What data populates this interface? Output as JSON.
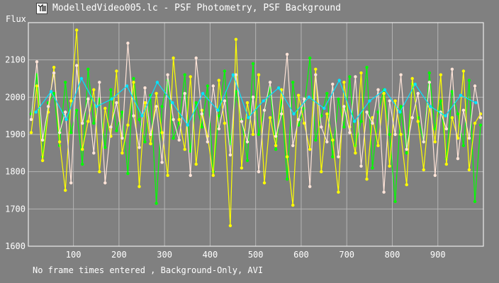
{
  "window": {
    "title": "ModelledVideo005.lc - PSF Photometry, PSF Background",
    "icon": "app-icon"
  },
  "footer": {
    "status": "No frame times entered , Background-Only, AVI"
  },
  "colors": {
    "background": "#808080",
    "grid": "#b4b4b4",
    "axis": "#ffffff",
    "series1": "#00ff00",
    "series2": "#ffff00",
    "series3": "#ffe4d8",
    "series4": "#00e5ff"
  },
  "chart_data": {
    "type": "line",
    "title": "",
    "xlabel": "",
    "ylabel": "Flux",
    "xlim": [
      1,
      1000
    ],
    "ylim": [
      1600,
      2200
    ],
    "grid": true,
    "x_ticks": [
      100,
      200,
      300,
      400,
      500,
      600,
      700,
      800,
      900
    ],
    "y_ticks": [
      1600,
      1700,
      1800,
      1900,
      2000,
      2100
    ],
    "series": [
      {
        "color": "#00ff00",
        "values": [
          1955,
          2060,
          1840,
          1985,
          2010,
          1870,
          2040,
          1905,
          1965,
          1820,
          2075,
          1930,
          1995,
          1865,
          2020,
          1910,
          1960,
          1795,
          2050,
          1940,
          1880,
          2005,
          1715,
          1975,
          2045,
          1890,
          1930,
          2060,
          1855,
          1985,
          1920,
          2030,
          1800,
          1950,
          2070,
          1875,
          2015,
          1940,
          1830,
          2090,
          1900,
          1965,
          2025,
          1860,
          1990,
          1780,
          2040,
          1925,
          1970,
          2105,
          1885,
          1950,
          2010,
          1840,
          1995,
          1920,
          2055,
          1870,
          1935,
          2080,
          1810,
          1960,
          2020,
          1900,
          1720,
          1975,
          1850,
          2035,
          1945,
          1880,
          2065,
          1915,
          1990,
          1835,
          2015,
          1955,
          1870,
          2045,
          1720,
          1925
        ]
      },
      {
        "color": "#ffff00",
        "values": [
          1905,
          2030,
          1830,
          1960,
          2080,
          1880,
          1750,
          1990,
          2180,
          1860,
          1935,
          2020,
          1800,
          1970,
          1895,
          2070,
          1850,
          1925,
          2040,
          1760,
          1985,
          1875,
          2010,
          1905,
          1790,
          2105,
          1940,
          1860,
          2055,
          1820,
          1965,
          1895,
          1790,
          2045,
          1930,
          1655,
          2155,
          1810,
          1985,
          1900,
          2060,
          1770,
          1945,
          1870,
          2020,
          1840,
          1710,
          2005,
          1930,
          1860,
          2075,
          1800,
          1955,
          1885,
          1745,
          2040,
          1920,
          1850,
          2065,
          1780,
          1945,
          1870,
          2010,
          1815,
          1990,
          1900,
          1765,
          2050,
          1935,
          1805,
          1975,
          1880,
          2060,
          1820,
          1945,
          1890,
          2070,
          1805,
          1930,
          1955
        ]
      },
      {
        "color": "#ffe4d8",
        "values": [
          1940,
          2095,
          1885,
          1975,
          2065,
          1905,
          1960,
          1770,
          2085,
          1930,
          1995,
          1850,
          2040,
          1770,
          1920,
          1985,
          1890,
          2145,
          1950,
          1865,
          2025,
          1900,
          1975,
          1825,
          2060,
          1940,
          1885,
          2010,
          1790,
          2105,
          1955,
          1880,
          2030,
          1915,
          1990,
          1845,
          2060,
          1935,
          1880,
          2000,
          1800,
          1965,
          2040,
          1895,
          1955,
          2115,
          1870,
          1940,
          1995,
          1760,
          2060,
          1920,
          1880,
          2035,
          1840,
          1975,
          1905,
          2055,
          1815,
          1960,
          1930,
          2020,
          1745,
          1990,
          1900,
          2060,
          1860,
          1945,
          2010,
          1880,
          2040,
          1790,
          1960,
          1915,
          2075,
          1835,
          1965,
          1890,
          2030,
          1945
        ]
      },
      {
        "color": "#00e5ff",
        "values": [
          1960,
          2015,
          1940,
          2050,
          1975,
          1995,
          2030,
          1950,
          2040,
          1985,
          1925,
          2010,
          1965,
          2060,
          1945,
          1990,
          2025,
          1955,
          2000,
          1970,
          2045,
          1935,
          1990,
          2020,
          1960,
          2035,
          1975,
          1950,
          2005,
          1985
        ]
      }
    ]
  }
}
